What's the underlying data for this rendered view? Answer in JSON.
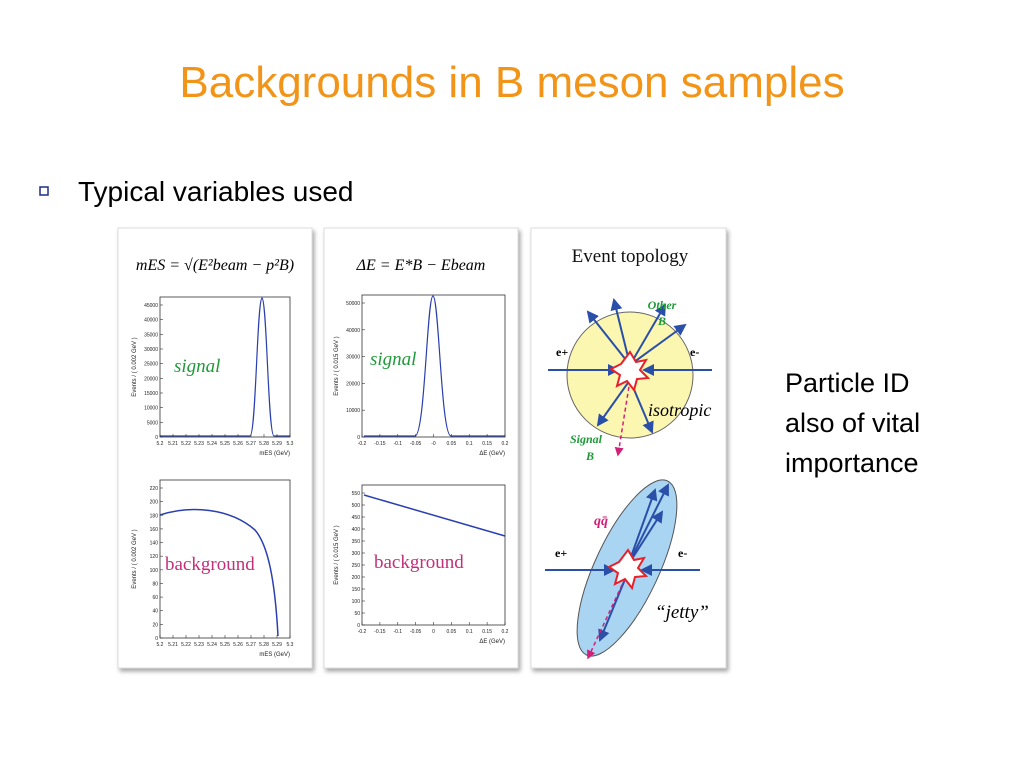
{
  "title": "Backgrounds in B meson samples",
  "bullet": "Typical variables used",
  "side_note": [
    "Particle ID",
    "also of vital",
    "importance"
  ],
  "panels": [
    {
      "formula": "mES = √(E²beam − p²B)",
      "plots": [
        {
          "label": "signal",
          "y_axis": "Events / ( 0.002 GeV )",
          "x_axis": "mES (GeV)",
          "yticks": [
            "0",
            "5000",
            "10000",
            "15000",
            "20000",
            "25000",
            "30000",
            "35000",
            "40000",
            "45000"
          ],
          "xticks": [
            "5.2",
            "5.21",
            "5.22",
            "5.23",
            "5.24",
            "5.25",
            "5.26",
            "5.27",
            "5.28",
            "5.29",
            "5.3"
          ]
        },
        {
          "label": "background",
          "y_axis": "Events / ( 0.002 GeV )",
          "x_axis": "mES (GeV)",
          "yticks": [
            "0",
            "20",
            "40",
            "60",
            "80",
            "100",
            "120",
            "140",
            "160",
            "180",
            "200",
            "220"
          ],
          "xticks": [
            "5.2",
            "5.21",
            "5.22",
            "5.23",
            "5.24",
            "5.25",
            "5.26",
            "5.27",
            "5.28",
            "5.29",
            "5.3"
          ]
        }
      ]
    },
    {
      "formula": "ΔE = E*B − Ebeam",
      "plots": [
        {
          "label": "signal",
          "y_axis": "Events / ( 0.015 GeV )",
          "x_axis": "ΔE (GeV)",
          "yticks": [
            "0",
            "10000",
            "20000",
            "30000",
            "40000",
            "50000"
          ],
          "xticks": [
            "-0.2",
            "-0.15",
            "-0.1",
            "-0.05",
            "-0",
            "0.05",
            "0.1",
            "0.15",
            "0.2"
          ]
        },
        {
          "label": "background",
          "y_axis": "Events / ( 0.015 GeV )",
          "x_axis": "ΔE (GeV)",
          "yticks": [
            "0",
            "50",
            "100",
            "150",
            "200",
            "250",
            "300",
            "350",
            "400",
            "450",
            "500",
            "550"
          ],
          "xticks": [
            "-0.2",
            "-0.15",
            "-0.1",
            "-0.05",
            "0",
            "0.05",
            "0.1",
            "0.15",
            "0.2"
          ]
        }
      ]
    }
  ],
  "topology": {
    "title": "Event topology",
    "other_b": [
      "Other",
      "B"
    ],
    "e_plus": "e+",
    "e_minus": "e-",
    "isotropic": "isotropic",
    "signal_b": [
      "Signal",
      "B"
    ],
    "qqbar": "qq̄",
    "jetty_e_plus": "e+",
    "jetty_e_minus": "e-",
    "jetty": "“jetty”"
  }
}
